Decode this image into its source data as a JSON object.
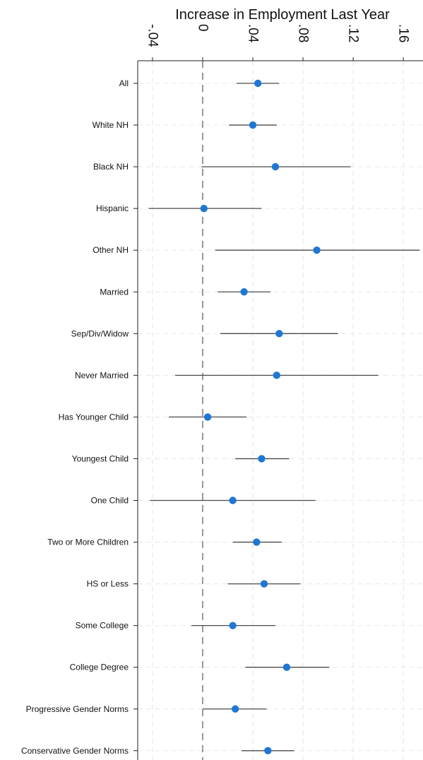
{
  "chart_data": {
    "type": "scatter",
    "title": "Increase in Employment Last Year",
    "xlabel": "",
    "ylabel": "",
    "xlim": [
      -0.044,
      0.174
    ],
    "x_ticks": [
      -0.04,
      0,
      0.04,
      0.08,
      0.12,
      0.16
    ],
    "x_tick_labels": [
      "-.04",
      "0",
      ".04",
      ".08",
      ".12",
      ".16"
    ],
    "x_axis_position": "top",
    "grid": true,
    "reference_line": 0,
    "marker_color": "#1f77d4",
    "categories": [
      "All",
      "White NH",
      "Black NH",
      "Hispanic",
      "Other NH",
      "Married",
      "Sep/Div/Widow",
      "Never Married",
      "Has Younger Child",
      "Youngest Child",
      "One Child",
      "Two or More Children",
      "HS or Less",
      "Some College",
      "College Degree",
      "Progressive Gender Norms",
      "Conservative Gender Norms"
    ],
    "series": [
      {
        "values": [
          0.044,
          0.04,
          0.058,
          0.001,
          0.091,
          0.033,
          0.061,
          0.059,
          0.004,
          0.047,
          0.024,
          0.043,
          0.049,
          0.024,
          0.067,
          0.026,
          0.052
        ],
        "ci_low": [
          0.027,
          0.021,
          -0.001,
          -0.043,
          0.01,
          0.012,
          0.014,
          -0.022,
          -0.027,
          0.026,
          -0.042,
          0.024,
          0.02,
          -0.009,
          0.034,
          0.0,
          0.031
        ],
        "ci_high": [
          0.061,
          0.059,
          0.118,
          0.047,
          0.173,
          0.054,
          0.108,
          0.14,
          0.035,
          0.069,
          0.09,
          0.063,
          0.078,
          0.058,
          0.101,
          0.051,
          0.073
        ]
      }
    ]
  }
}
